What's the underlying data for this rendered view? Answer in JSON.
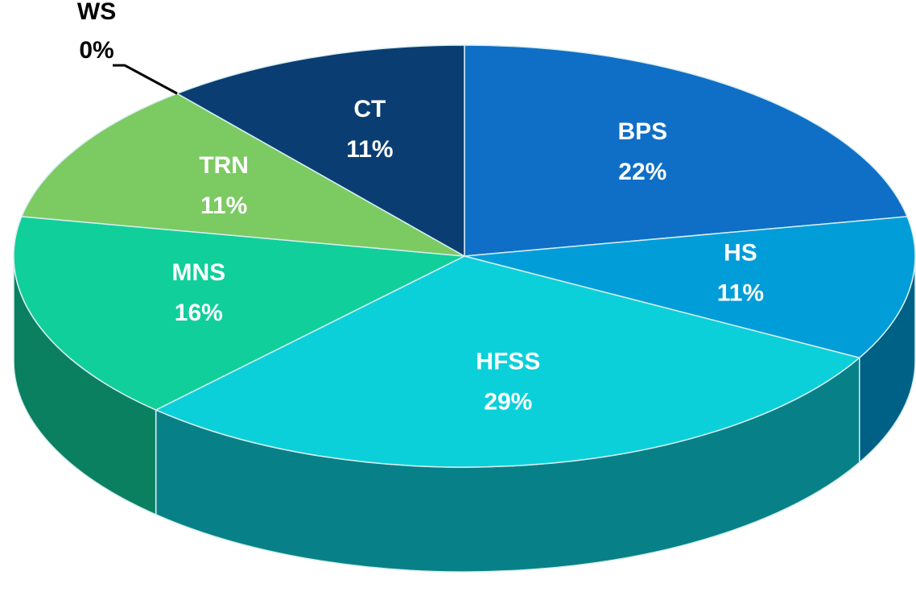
{
  "chart_data": {
    "type": "pie",
    "categories": [
      "BPS",
      "HS",
      "HFSS",
      "MNS",
      "TRN",
      "WS",
      "CT"
    ],
    "values": [
      22,
      11,
      29,
      16,
      11,
      0,
      11
    ],
    "value_labels": [
      "22%",
      "11%",
      "29%",
      "16%",
      "11%",
      "0%",
      "11%"
    ],
    "colors": [
      "#0f6fc6",
      "#009dd9",
      "#0bd0d9",
      "#10cf9b",
      "#7cca62",
      "#a5c249",
      "#0a3e73"
    ]
  }
}
